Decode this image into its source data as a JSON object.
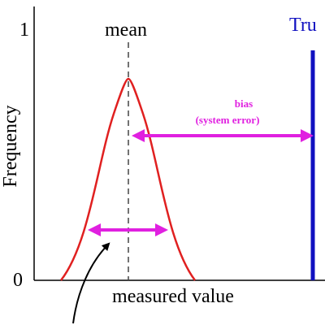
{
  "axis": {
    "y_top": "1",
    "y_bottom": "0",
    "y_label": "Frequency",
    "x_label": "measured value"
  },
  "labels": {
    "mean": "mean",
    "true_value": "Tru",
    "bias": "bias",
    "bias_note": "(system error)"
  }
}
